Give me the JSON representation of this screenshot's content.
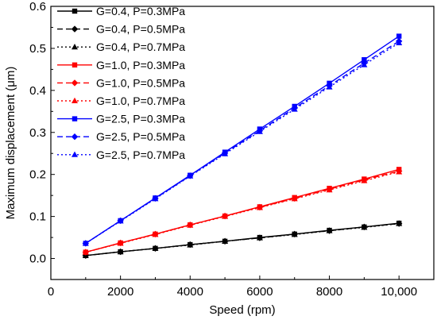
{
  "chart_data": {
    "type": "line",
    "xlabel": "Speed (rpm)",
    "ylabel": "Maximum displacement (μm)",
    "xlim": [
      0,
      11000
    ],
    "ylim": [
      -0.05,
      0.6
    ],
    "x_ticks": [
      {
        "value": 0,
        "label": "0"
      },
      {
        "value": 2000,
        "label": "2000"
      },
      {
        "value": 4000,
        "label": "4000"
      },
      {
        "value": 6000,
        "label": "6000"
      },
      {
        "value": 8000,
        "label": "8000"
      },
      {
        "value": 10000,
        "label": "10,000"
      }
    ],
    "y_ticks": [
      {
        "value": 0.0,
        "label": "0.0"
      },
      {
        "value": 0.1,
        "label": "0.1"
      },
      {
        "value": 0.2,
        "label": "0.2"
      },
      {
        "value": 0.3,
        "label": "0.3"
      },
      {
        "value": 0.4,
        "label": "0.4"
      },
      {
        "value": 0.5,
        "label": "0.5"
      },
      {
        "value": 0.6,
        "label": "0.6"
      }
    ],
    "grid": false,
    "legend_position": "top-left",
    "x": [
      1000,
      2000,
      3000,
      4000,
      5000,
      6000,
      7000,
      8000,
      9000,
      10000
    ],
    "series": [
      {
        "name": "G=0.4, P=0.3MPa",
        "color": "#000000",
        "dash": "solid",
        "marker": "square",
        "values": [
          0.007,
          0.016,
          0.024,
          0.033,
          0.041,
          0.05,
          0.058,
          0.067,
          0.075,
          0.084
        ]
      },
      {
        "name": "G=0.4, P=0.5MPa",
        "color": "#000000",
        "dash": "dashed",
        "marker": "diamond",
        "values": [
          0.007,
          0.016,
          0.024,
          0.033,
          0.041,
          0.049,
          0.058,
          0.066,
          0.075,
          0.083
        ]
      },
      {
        "name": "G=0.4, P=0.7MPa",
        "color": "#000000",
        "dash": "dotted",
        "marker": "triangle",
        "values": [
          0.007,
          0.016,
          0.024,
          0.032,
          0.041,
          0.049,
          0.057,
          0.066,
          0.074,
          0.083
        ]
      },
      {
        "name": "G=1.0, P=0.3MPa",
        "color": "#ff0000",
        "dash": "solid",
        "marker": "square",
        "values": [
          0.015,
          0.037,
          0.058,
          0.08,
          0.101,
          0.123,
          0.145,
          0.167,
          0.189,
          0.212
        ]
      },
      {
        "name": "G=1.0, P=0.5MPa",
        "color": "#ff0000",
        "dash": "dashed",
        "marker": "diamond",
        "values": [
          0.015,
          0.037,
          0.058,
          0.08,
          0.101,
          0.122,
          0.143,
          0.165,
          0.187,
          0.208
        ]
      },
      {
        "name": "G=1.0, P=0.7MPa",
        "color": "#ff0000",
        "dash": "dotted",
        "marker": "triangle",
        "values": [
          0.015,
          0.036,
          0.057,
          0.079,
          0.1,
          0.121,
          0.142,
          0.163,
          0.185,
          0.206
        ]
      },
      {
        "name": "G=2.5, P=0.3MPa",
        "color": "#0000ff",
        "dash": "solid",
        "marker": "square",
        "values": [
          0.036,
          0.09,
          0.144,
          0.198,
          0.253,
          0.308,
          0.362,
          0.417,
          0.473,
          0.529
        ]
      },
      {
        "name": "G=2.5, P=0.5MPa",
        "color": "#0000ff",
        "dash": "dashed",
        "marker": "diamond",
        "values": [
          0.036,
          0.09,
          0.143,
          0.197,
          0.251,
          0.304,
          0.358,
          0.411,
          0.465,
          0.517
        ]
      },
      {
        "name": "G=2.5, P=0.7MPa",
        "color": "#0000ff",
        "dash": "dotted",
        "marker": "triangle",
        "values": [
          0.036,
          0.089,
          0.142,
          0.196,
          0.249,
          0.302,
          0.355,
          0.408,
          0.461,
          0.513
        ]
      }
    ]
  }
}
